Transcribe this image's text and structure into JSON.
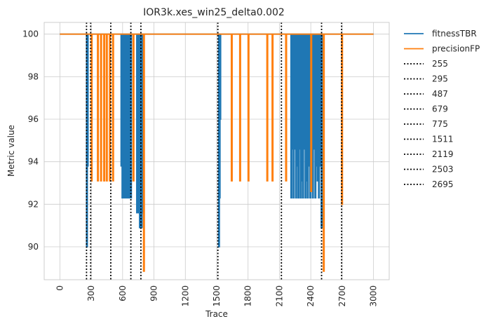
{
  "chart_data": {
    "type": "line",
    "title": "IOR3k.xes_win25_delta0.002",
    "xlabel": "Trace",
    "ylabel": "Metric value",
    "xlim": [
      -150,
      3150
    ],
    "ylim": [
      88.45,
      100.55
    ],
    "x_ticks": [
      0,
      300,
      600,
      900,
      1200,
      1500,
      1800,
      2100,
      2400,
      2700,
      3000
    ],
    "y_ticks": [
      90,
      92,
      94,
      96,
      98,
      100
    ],
    "grid": true,
    "legend_position": "outside-right",
    "series": [
      {
        "name": "fitnessTBR",
        "color": "#1f77b4",
        "spikes": [
          [
            255,
            90.0
          ],
          [
            262,
            93.8
          ],
          [
            585,
            93.8
          ],
          [
            595,
            92.3
          ],
          [
            605,
            93.1
          ],
          [
            612,
            92.3
          ],
          [
            620,
            93.8
          ],
          [
            628,
            92.3
          ],
          [
            636,
            93.1
          ],
          [
            645,
            92.3
          ],
          [
            652,
            93.8
          ],
          [
            660,
            92.3
          ],
          [
            668,
            93.1
          ],
          [
            676,
            92.3
          ],
          [
            735,
            91.6
          ],
          [
            745,
            92.3
          ],
          [
            752,
            91.6
          ],
          [
            762,
            90.9
          ],
          [
            770,
            91.6
          ],
          [
            778,
            90.9
          ],
          [
            786,
            91.6
          ],
          [
            1518,
            90.0
          ],
          [
            1524,
            92.3
          ],
          [
            1530,
            96.0
          ],
          [
            2210,
            92.3
          ],
          [
            2220,
            94.6
          ],
          [
            2232,
            92.3
          ],
          [
            2244,
            94.6
          ],
          [
            2256,
            92.3
          ],
          [
            2266,
            93.8
          ],
          [
            2278,
            92.3
          ],
          [
            2290,
            94.6
          ],
          [
            2300,
            92.3
          ],
          [
            2312,
            93.1
          ],
          [
            2322,
            92.3
          ],
          [
            2334,
            94.6
          ],
          [
            2346,
            92.3
          ],
          [
            2356,
            93.1
          ],
          [
            2368,
            92.3
          ],
          [
            2380,
            93.8
          ],
          [
            2392,
            92.3
          ],
          [
            2404,
            92.6
          ],
          [
            2416,
            92.3
          ],
          [
            2428,
            94.6
          ],
          [
            2440,
            92.3
          ],
          [
            2452,
            93.8
          ],
          [
            2462,
            93.1
          ],
          [
            2474,
            92.3
          ],
          [
            2486,
            93.8
          ],
          [
            2500,
            90.9
          ]
        ]
      },
      {
        "name": "precisionFP",
        "color": "#ff7f0e",
        "spikes": [
          [
            300,
            93.1
          ],
          [
            360,
            93.1
          ],
          [
            390,
            93.1
          ],
          [
            420,
            93.1
          ],
          [
            445,
            93.1
          ],
          [
            475,
            93.1
          ],
          [
            505,
            93.1
          ],
          [
            700,
            93.1
          ],
          [
            800,
            88.85
          ],
          [
            1640,
            93.1
          ],
          [
            1720,
            93.1
          ],
          [
            1800,
            93.1
          ],
          [
            1980,
            93.1
          ],
          [
            2030,
            93.1
          ],
          [
            2160,
            93.1
          ],
          [
            2400,
            92.6
          ],
          [
            2520,
            88.85
          ],
          [
            2695,
            92.0
          ]
        ]
      }
    ],
    "baseline": {
      "x": [
        0,
        3000
      ],
      "y": 100
    },
    "vlines": [
      {
        "name": "255",
        "x": 255
      },
      {
        "name": "295",
        "x": 295
      },
      {
        "name": "487",
        "x": 487
      },
      {
        "name": "679",
        "x": 679
      },
      {
        "name": "775",
        "x": 775
      },
      {
        "name": "1511",
        "x": 1511
      },
      {
        "name": "2119",
        "x": 2119
      },
      {
        "name": "2503",
        "x": 2503
      },
      {
        "name": "2695",
        "x": 2695
      }
    ],
    "vline_style": {
      "color": "#000000"
    }
  }
}
